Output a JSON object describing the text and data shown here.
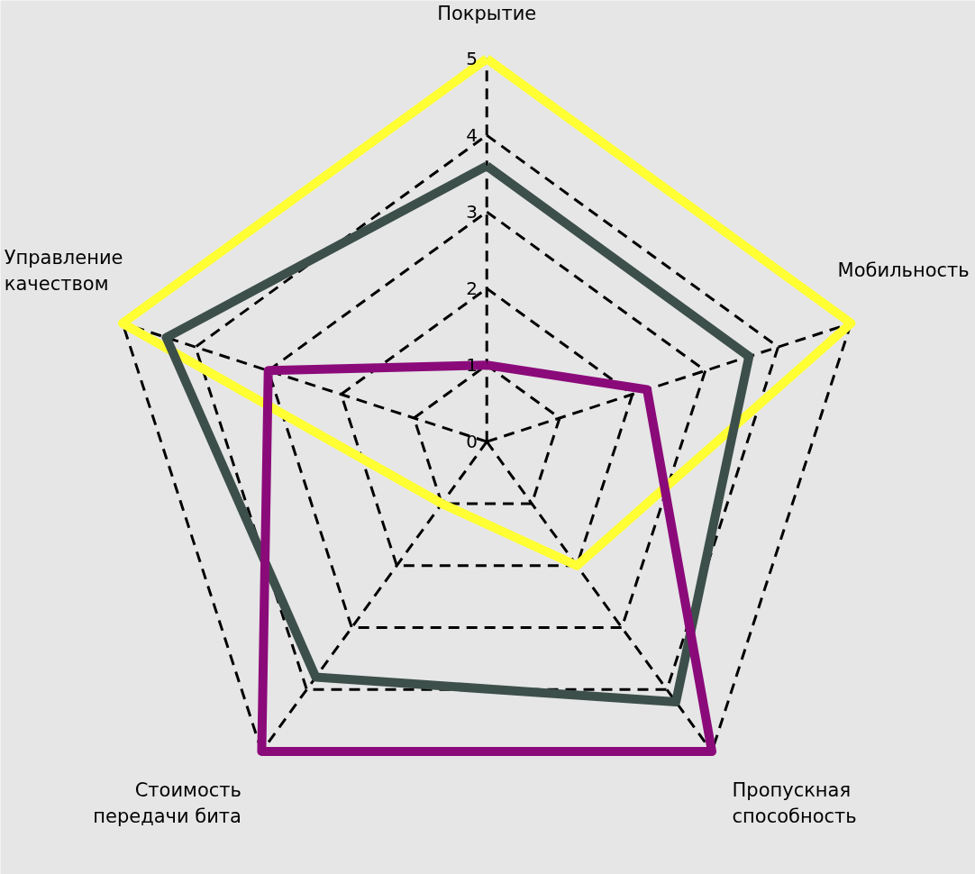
{
  "chart_data": {
    "type": "radar",
    "categories": [
      "Покрытие",
      "Мобильность",
      "Пропускная\nспособность",
      "Стоимость\nпередачи бита",
      "Управление\nкачеством"
    ],
    "series": [
      {
        "color": "#ffff33",
        "values": [
          5,
          5,
          2,
          1,
          5
        ]
      },
      {
        "color": "#3d4f4a",
        "values": [
          3.6,
          3.6,
          4.2,
          3.8,
          4.4
        ]
      },
      {
        "color": "#8b0a7a",
        "values": [
          1,
          2.2,
          5,
          5,
          3
        ]
      }
    ],
    "ylim": [
      0,
      5
    ],
    "yticks": [
      0,
      1,
      2,
      3,
      4,
      5
    ],
    "grid": true
  }
}
